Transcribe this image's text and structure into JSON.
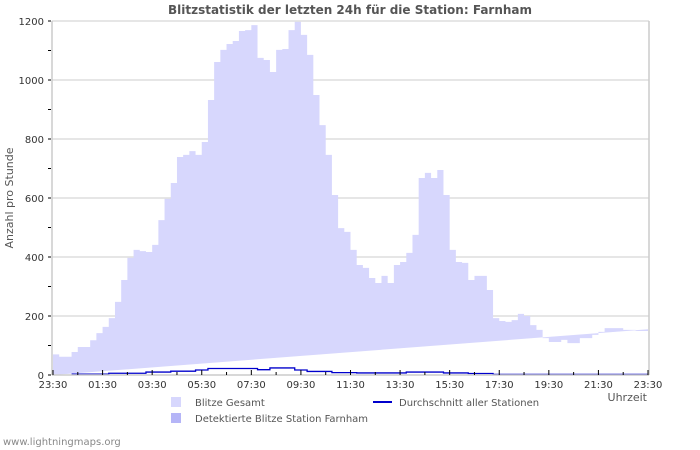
{
  "title": "Blitzstatistik der letzten 24h für die Station: Farnham",
  "footer": "www.lightningmaps.org",
  "colors": {
    "total_fill": "#d7d7fd",
    "detected_fill": "#b5b5f7",
    "average_line": "#0000cc",
    "grid": "#cccccc",
    "axis": "#cccccc"
  },
  "legend": [
    {
      "label": "Blitze Gesamt",
      "type": "swatch",
      "color": "#d7d7fd"
    },
    {
      "label": "Detektierte Blitze Station Farnham",
      "type": "swatch",
      "color": "#b5b5f7"
    },
    {
      "label": "Durchschnitt aller Stationen",
      "type": "line",
      "color": "#0000cc"
    }
  ],
  "chart_data": {
    "type": "area",
    "title": "Blitzstatistik der letzten 24h für die Station: Farnham",
    "xlabel": "Uhrzeit",
    "ylabel": "Anzahl pro Stunde",
    "ylim": [
      0,
      1200
    ],
    "yticks": [
      0,
      200,
      400,
      600,
      800,
      1000,
      1200
    ],
    "xticks": [
      "23:30",
      "01:30",
      "03:30",
      "05:30",
      "07:30",
      "09:30",
      "11:30",
      "13:30",
      "15:30",
      "17:30",
      "19:30",
      "21:30",
      "23:30"
    ],
    "grid": true,
    "legend_position": "bottom",
    "x_hours": [
      0,
      0.25,
      0.5,
      0.75,
      1,
      1.25,
      1.5,
      1.75,
      2,
      2.25,
      2.5,
      2.75,
      3,
      3.25,
      3.5,
      3.75,
      4,
      4.25,
      4.5,
      4.75,
      5,
      5.25,
      5.5,
      5.75,
      6,
      6.25,
      6.5,
      6.75,
      7,
      7.25,
      7.5,
      7.75,
      8,
      8.25,
      8.5,
      8.75,
      9,
      9.25,
      9.5,
      9.75,
      10,
      10.25,
      10.5,
      10.75,
      11,
      11.25,
      11.5,
      11.75,
      12,
      12.25,
      12.5,
      12.75,
      13,
      13.25,
      13.5,
      13.75,
      14,
      14.25,
      14.5,
      14.75,
      15,
      15.25,
      15.5,
      15.75,
      16,
      16.25,
      16.5,
      16.75,
      17,
      17.25,
      17.5,
      17.75,
      18,
      18.25,
      18.5,
      18.75,
      19,
      19.25,
      19.5,
      19.75,
      20,
      20.25,
      20.5,
      20.75,
      21,
      21.25,
      21.5,
      21.75,
      22,
      22.25,
      22.5,
      22.75,
      23,
      23.25,
      23.5,
      23.75,
      24
    ],
    "series": [
      {
        "name": "Blitze Gesamt",
        "values": [
          70,
          62,
          62,
          78,
          95,
          95,
          118,
          142,
          163,
          193,
          248,
          322,
          397,
          424,
          420,
          417,
          441,
          525,
          597,
          651,
          739,
          746,
          759,
          746,
          790,
          932,
          1061,
          1102,
          1122,
          1132,
          1166,
          1169,
          1186,
          1075,
          1068,
          1027,
          1102,
          1105,
          1169,
          1197,
          1153,
          1085,
          949,
          847,
          746,
          610,
          498,
          485,
          424,
          373,
          363,
          329,
          312,
          336,
          312,
          373,
          383,
          414,
          475,
          668,
          685,
          668,
          695,
          610,
          424,
          383,
          380,
          322,
          336,
          336,
          288,
          193,
          183,
          180,
          186,
          207,
          200,
          169,
          153,
          125,
          112,
          112,
          119,
          108,
          108,
          125,
          125,
          136,
          146,
          159,
          159,
          159,
          153,
          153,
          149,
          149,
          155,
          159,
          160
        ]
      },
      {
        "name": "Detektierte Blitze Station Farnham",
        "values": []
      },
      {
        "name": "Durchschnitt aller Stationen",
        "x_hours": [
          0.75,
          2.25,
          2.25,
          3.75,
          3.75,
          4.75,
          4.75,
          5.75,
          5.75,
          6.25,
          6.25,
          7.75,
          7.75,
          8.25,
          8.25,
          8.75,
          8.75,
          9.75,
          9.75,
          10.25,
          10.25,
          11.25,
          11.25,
          12.25,
          12.25,
          14.25,
          14.25,
          15.75,
          15.75,
          16.75,
          16.75,
          17.75,
          17.75,
          24
        ],
        "values": [
          3,
          3,
          6,
          6,
          10,
          10,
          13,
          13,
          17,
          17,
          22,
          22,
          22,
          22,
          18,
          18,
          24,
          24,
          17,
          17,
          12,
          12,
          8,
          8,
          7,
          7,
          10,
          10,
          7,
          7,
          5,
          5,
          2,
          2
        ]
      }
    ]
  }
}
